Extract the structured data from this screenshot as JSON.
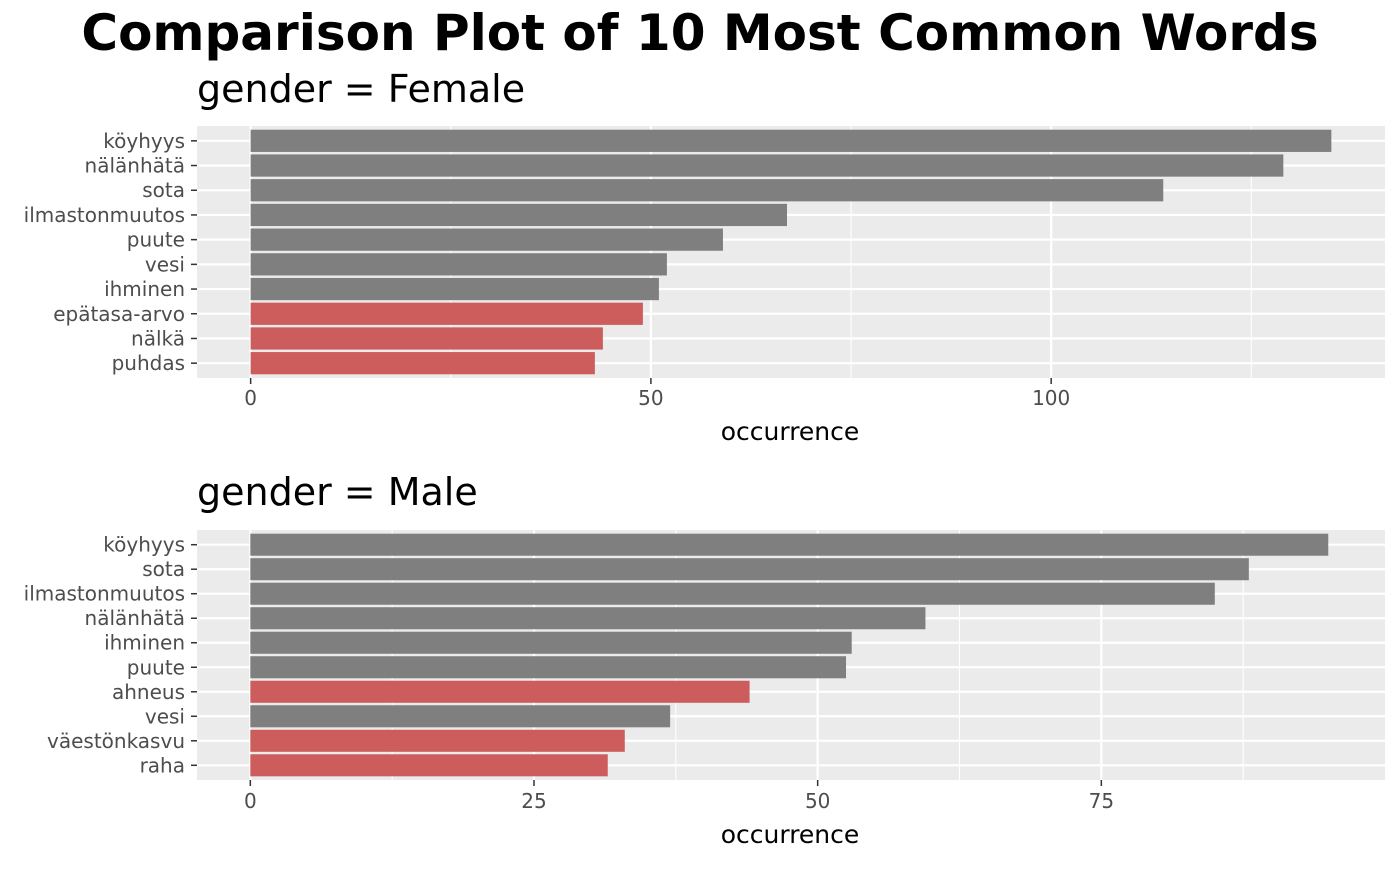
{
  "title": "Comparison Plot of 10 Most Common Words",
  "colors": {
    "panel_background": "#ebebeb",
    "grid": "#ffffff",
    "default_bar": "#7f7f7f",
    "highlight_bar": "#cd5c5c",
    "tick_text": "#4d4d4d"
  },
  "chart_data": [
    {
      "type": "bar",
      "orientation": "horizontal",
      "title": "gender = Female",
      "xlabel": "occurrence",
      "categories": [
        "köyhyys",
        "nälänhätä",
        "sota",
        "ilmastonmuutos",
        "puute",
        "vesi",
        "ihminen",
        "epätasa-arvo",
        "nälkä",
        "puhdas"
      ],
      "values": [
        135,
        129,
        114,
        67,
        59,
        52,
        51,
        49,
        44,
        43
      ],
      "highlighted": [
        false,
        false,
        false,
        false,
        false,
        false,
        false,
        true,
        true,
        true
      ],
      "xlim": [
        -6.7,
        141.7
      ],
      "xticks": [
        0,
        50,
        100
      ],
      "xtick_labels": [
        "0",
        "50",
        "100"
      ],
      "grid": true
    },
    {
      "type": "bar",
      "orientation": "horizontal",
      "title": "gender = Male",
      "xlabel": "occurrence",
      "categories": [
        "köyhyys",
        "sota",
        "ilmastonmuutos",
        "nälänhätä",
        "ihminen",
        "puute",
        "ahneus",
        "vesi",
        "väestönkasvu",
        "raha"
      ],
      "values": [
        95,
        88,
        85,
        59.5,
        53,
        52.5,
        44,
        37,
        33,
        31.5
      ],
      "highlighted": [
        false,
        false,
        false,
        false,
        false,
        false,
        true,
        false,
        true,
        true
      ],
      "xlim": [
        -4.7,
        100
      ],
      "xticks": [
        0,
        25,
        50,
        75
      ],
      "xtick_labels": [
        "0",
        "25",
        "50",
        "75"
      ],
      "grid": true
    }
  ]
}
